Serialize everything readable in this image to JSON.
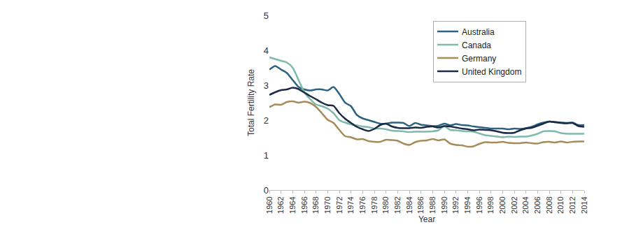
{
  "chart_data": {
    "type": "line",
    "x_label": "Year",
    "y_label": "Total Fertility Rate",
    "x": [
      1960,
      1961,
      1962,
      1963,
      1964,
      1965,
      1966,
      1967,
      1968,
      1969,
      1970,
      1971,
      1972,
      1973,
      1974,
      1975,
      1976,
      1977,
      1978,
      1979,
      1980,
      1981,
      1982,
      1983,
      1984,
      1985,
      1986,
      1987,
      1988,
      1989,
      1990,
      1991,
      1992,
      1993,
      1994,
      1995,
      1996,
      1997,
      1998,
      1999,
      2000,
      2001,
      2002,
      2003,
      2004,
      2005,
      2006,
      2007,
      2008,
      2009,
      2010,
      2011,
      2012,
      2013,
      2014
    ],
    "series": [
      {
        "name": "Australia",
        "color": "#2e6282",
        "values": [
          3.45,
          3.55,
          3.45,
          3.35,
          3.15,
          2.95,
          2.88,
          2.85,
          2.88,
          2.88,
          2.85,
          2.95,
          2.75,
          2.5,
          2.4,
          2.15,
          2.05,
          2.0,
          1.95,
          1.9,
          1.9,
          1.93,
          1.93,
          1.92,
          1.83,
          1.92,
          1.87,
          1.85,
          1.83,
          1.84,
          1.9,
          1.85,
          1.89,
          1.86,
          1.85,
          1.82,
          1.8,
          1.78,
          1.76,
          1.76,
          1.76,
          1.74,
          1.76,
          1.75,
          1.77,
          1.81,
          1.88,
          1.93,
          1.96,
          1.95,
          1.93,
          1.92,
          1.93,
          1.86,
          1.86
        ]
      },
      {
        "name": "Canada",
        "color": "#80b9ab",
        "values": [
          3.8,
          3.75,
          3.7,
          3.65,
          3.5,
          3.15,
          2.8,
          2.6,
          2.45,
          2.4,
          2.33,
          2.2,
          2.0,
          1.93,
          1.88,
          1.85,
          1.82,
          1.8,
          1.76,
          1.76,
          1.74,
          1.7,
          1.69,
          1.68,
          1.66,
          1.67,
          1.67,
          1.67,
          1.68,
          1.71,
          1.83,
          1.72,
          1.71,
          1.69,
          1.68,
          1.67,
          1.62,
          1.57,
          1.55,
          1.53,
          1.51,
          1.53,
          1.52,
          1.53,
          1.53,
          1.56,
          1.61,
          1.68,
          1.69,
          1.68,
          1.63,
          1.61,
          1.61,
          1.61,
          1.61
        ]
      },
      {
        "name": "Germany",
        "color": "#a68b5b",
        "values": [
          2.37,
          2.45,
          2.44,
          2.52,
          2.54,
          2.5,
          2.53,
          2.49,
          2.38,
          2.2,
          2.01,
          1.92,
          1.72,
          1.54,
          1.51,
          1.45,
          1.46,
          1.4,
          1.38,
          1.38,
          1.44,
          1.43,
          1.41,
          1.33,
          1.29,
          1.37,
          1.41,
          1.42,
          1.46,
          1.42,
          1.45,
          1.33,
          1.29,
          1.28,
          1.24,
          1.25,
          1.32,
          1.37,
          1.36,
          1.36,
          1.38,
          1.35,
          1.34,
          1.34,
          1.36,
          1.34,
          1.33,
          1.37,
          1.38,
          1.36,
          1.39,
          1.36,
          1.38,
          1.39,
          1.39
        ]
      },
      {
        "name": "United Kingdom",
        "color": "#1b2a45",
        "values": [
          2.72,
          2.8,
          2.86,
          2.88,
          2.93,
          2.89,
          2.79,
          2.69,
          2.6,
          2.5,
          2.43,
          2.41,
          2.2,
          2.04,
          1.92,
          1.81,
          1.74,
          1.69,
          1.75,
          1.86,
          1.9,
          1.82,
          1.78,
          1.77,
          1.77,
          1.79,
          1.78,
          1.81,
          1.82,
          1.79,
          1.83,
          1.82,
          1.79,
          1.76,
          1.74,
          1.71,
          1.73,
          1.72,
          1.71,
          1.68,
          1.64,
          1.63,
          1.64,
          1.71,
          1.76,
          1.78,
          1.84,
          1.9,
          1.96,
          1.94,
          1.92,
          1.91,
          1.92,
          1.83,
          1.81
        ]
      }
    ],
    "xlim": [
      1960,
      2014
    ],
    "xticks": [
      1960,
      1962,
      1964,
      1966,
      1968,
      1970,
      1972,
      1974,
      1976,
      1978,
      1980,
      1982,
      1984,
      1986,
      1988,
      1990,
      1992,
      1994,
      1996,
      1998,
      2000,
      2002,
      2004,
      2006,
      2008,
      2010,
      2012,
      2014
    ],
    "ylim": [
      0,
      5
    ],
    "yticks": [
      0,
      1,
      2,
      3,
      4,
      5
    ],
    "grid": false,
    "legend": "upper right"
  }
}
